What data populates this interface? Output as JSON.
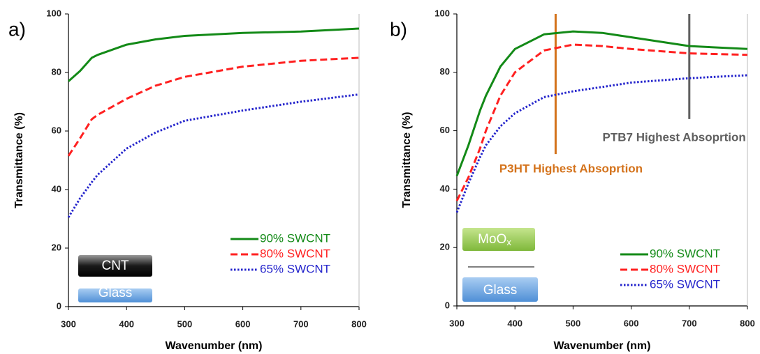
{
  "chart_data": [
    {
      "type": "line",
      "panel_label": "a)",
      "x_label": "Wavenumber (nm)",
      "y_label": "Transmittance (%)",
      "x": [
        300,
        320,
        340,
        350,
        400,
        450,
        500,
        600,
        700,
        800
      ],
      "series": [
        {
          "name": "90% SWCNT",
          "color": "#138a17",
          "style": "solid",
          "values": [
            77,
            80.5,
            85,
            86,
            89.5,
            91.3,
            92.5,
            93.5,
            94,
            95
          ]
        },
        {
          "name": "80% SWCNT",
          "color": "#ff2020",
          "style": "dashed",
          "values": [
            51.5,
            57.5,
            64,
            65.5,
            71,
            75.5,
            78.5,
            82,
            84,
            85
          ]
        },
        {
          "name": "65% SWCNT",
          "color": "#2525cc",
          "style": "dotted",
          "values": [
            30.5,
            37,
            42.5,
            45,
            54,
            59.5,
            63.5,
            67,
            70,
            72.5
          ]
        }
      ],
      "xlim": [
        300,
        800
      ],
      "ylim": [
        0,
        100
      ],
      "xticks": [
        300,
        400,
        500,
        600,
        700,
        800
      ],
      "yticks": [
        0,
        20,
        40,
        60,
        80,
        100
      ],
      "legend": "lower right",
      "layers": [
        {
          "label": "CNT"
        },
        {
          "label": "Glass"
        }
      ]
    },
    {
      "type": "line",
      "panel_label": "b)",
      "x_label": "Wavenumber (nm)",
      "y_label": "Transmittance (%)",
      "x": [
        300,
        320,
        340,
        350,
        375,
        400,
        450,
        500,
        550,
        600,
        700,
        800
      ],
      "series": [
        {
          "name": "90% SWCNT",
          "color": "#138a17",
          "style": "solid",
          "values": [
            44.5,
            55,
            67,
            72,
            82,
            88,
            93,
            94,
            93.5,
            92,
            89,
            88
          ]
        },
        {
          "name": "80% SWCNT",
          "color": "#ff2020",
          "style": "dashed",
          "values": [
            36,
            44,
            54,
            60,
            72,
            80,
            87.5,
            89.5,
            89,
            88,
            86.5,
            86
          ]
        },
        {
          "name": "65% SWCNT",
          "color": "#2525cc",
          "style": "dotted",
          "values": [
            32,
            42,
            51,
            55,
            61.5,
            66,
            71.5,
            73.5,
            75,
            76.5,
            78,
            79
          ]
        }
      ],
      "xlim": [
        300,
        800
      ],
      "ylim": [
        0,
        100
      ],
      "xticks": [
        300,
        400,
        500,
        600,
        700,
        800
      ],
      "yticks": [
        0,
        20,
        40,
        60,
        80,
        100
      ],
      "legend": "lower right",
      "annotations": [
        {
          "text": "P3HT Highest Absoprtion",
          "x": 470,
          "y_range": [
            52,
            100
          ],
          "color": "#d4731c"
        },
        {
          "text": "PTB7 Highest Absoprtion",
          "x": 700,
          "y_range": [
            64,
            100
          ],
          "color": "#5f5f5f"
        }
      ],
      "layers": [
        {
          "label": "MoO",
          "subscript": "x"
        },
        {
          "label": "Glass"
        }
      ]
    }
  ]
}
